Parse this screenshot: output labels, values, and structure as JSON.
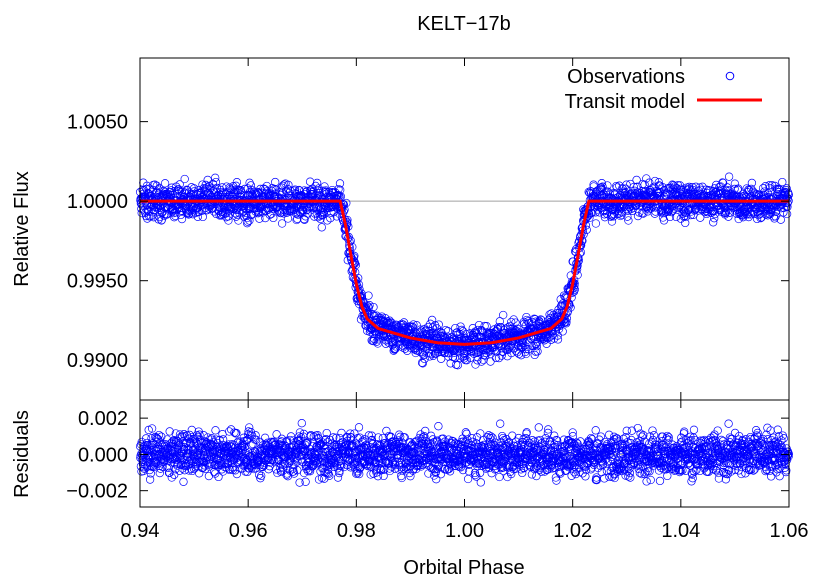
{
  "chart_data": [
    {
      "type": "scatter",
      "title": "KELT−17b",
      "ylabel": "Relative Flux",
      "xlabel": "",
      "xlim": [
        0.94,
        1.06
      ],
      "ylim": [
        0.9875,
        1.009
      ],
      "x_ticks": [
        0.94,
        0.96,
        0.98,
        1.0,
        1.02,
        1.04,
        1.06
      ],
      "y_ticks": [
        0.99,
        0.995,
        1.0,
        1.005
      ],
      "y_tick_labels": [
        "0.9900",
        "0.9950",
        "1.0000",
        "1.0050"
      ],
      "reference_line": 1.0,
      "legend_position": "top-right",
      "series": [
        {
          "name": "Observations",
          "kind": "scatter",
          "marker": "open-circle",
          "color": "#0000ff",
          "description_of_points": "densely sampled flux values; scatter of about ±0.001 around the model",
          "samples": [
            [
              0.941,
              1.0003
            ],
            [
              0.945,
              0.9996
            ],
            [
              0.95,
              1.0008
            ],
            [
              0.955,
              0.9991
            ],
            [
              0.96,
              1.0004
            ],
            [
              0.965,
              1.0012
            ],
            [
              0.97,
              0.9994
            ],
            [
              0.975,
              1.0002
            ],
            [
              0.978,
              0.9978
            ],
            [
              0.98,
              0.9948
            ],
            [
              0.982,
              0.9931
            ],
            [
              0.985,
              0.9915
            ],
            [
              0.99,
              0.9908
            ],
            [
              0.995,
              0.9917
            ],
            [
              1.0,
              0.9904
            ],
            [
              1.005,
              0.9913
            ],
            [
              1.01,
              0.9909
            ],
            [
              1.015,
              0.9922
            ],
            [
              1.018,
              0.9934
            ],
            [
              1.02,
              0.9962
            ],
            [
              1.022,
              0.9987
            ],
            [
              1.025,
              1.0006
            ],
            [
              1.03,
              0.9995
            ],
            [
              1.035,
              1.0009
            ],
            [
              1.04,
              0.9989
            ],
            [
              1.045,
              1.0003
            ],
            [
              1.05,
              1.0011
            ],
            [
              1.055,
              0.9996
            ],
            [
              1.059,
              1.0002
            ]
          ]
        },
        {
          "name": "Transit model",
          "kind": "line",
          "color": "#ff0000",
          "x": [
            0.94,
            0.977,
            0.978,
            0.979,
            0.98,
            0.981,
            0.982,
            0.984,
            0.99,
            0.995,
            1.0,
            1.005,
            1.01,
            1.016,
            1.018,
            1.019,
            1.02,
            1.021,
            1.022,
            1.023,
            1.06
          ],
          "y": [
            1.0,
            1.0,
            0.9985,
            0.9966,
            0.9948,
            0.9934,
            0.9926,
            0.992,
            0.9914,
            0.9911,
            0.991,
            0.9911,
            0.9914,
            0.992,
            0.9926,
            0.9934,
            0.9948,
            0.9966,
            0.9985,
            1.0,
            1.0
          ]
        }
      ]
    },
    {
      "type": "scatter",
      "title": "",
      "ylabel": "Residuals",
      "xlabel": "Orbital Phase",
      "xlim": [
        0.94,
        1.06
      ],
      "ylim": [
        -0.0029,
        0.003
      ],
      "x_ticks": [
        0.94,
        0.96,
        0.98,
        1.0,
        1.02,
        1.04,
        1.06
      ],
      "x_tick_labels": [
        "0.94",
        "0.96",
        "0.98",
        "1.00",
        "1.02",
        "1.04",
        "1.06"
      ],
      "y_ticks": [
        -0.002,
        0.0,
        0.002
      ],
      "y_tick_labels": [
        "−0.002",
        "0.000",
        "0.002"
      ],
      "reference_line": 0.0,
      "series": [
        {
          "kind": "scatter",
          "marker": "open-circle",
          "color": "#0000ff",
          "description_of_points": "residuals scattered roughly between -0.002 and +0.002 around zero",
          "samples": [
            [
              0.941,
              0.0003
            ],
            [
              0.95,
              -0.0008
            ],
            [
              0.96,
              0.0011
            ],
            [
              0.97,
              -0.0004
            ],
            [
              0.98,
              0.0006
            ],
            [
              0.99,
              -0.0012
            ],
            [
              1.0,
              0.0002
            ],
            [
              1.01,
              0.0009
            ],
            [
              1.02,
              -0.0006
            ],
            [
              1.03,
              0.0013
            ],
            [
              1.04,
              -0.0009
            ],
            [
              1.05,
              0.0004
            ],
            [
              1.059,
              -0.0002
            ]
          ]
        }
      ]
    }
  ]
}
